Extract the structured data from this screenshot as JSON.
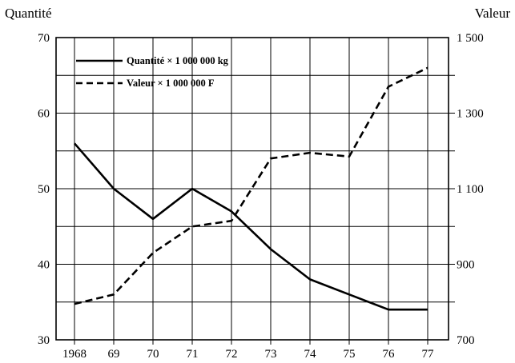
{
  "chart_data": {
    "type": "line",
    "title": "",
    "x": [
      "1968",
      "69",
      "70",
      "71",
      "72",
      "73",
      "74",
      "75",
      "76",
      "77"
    ],
    "left_axis": {
      "label": "Quantité",
      "min": 30,
      "max": 70,
      "ticks": [
        "30",
        "40",
        "50",
        "60",
        "70"
      ]
    },
    "right_axis": {
      "label": "Valeur",
      "min": 700,
      "max": 1500,
      "ticks": [
        "700",
        "900",
        "1 100",
        "1 300",
        "1 500"
      ]
    },
    "grid": true,
    "legend_position": "top-left",
    "series": [
      {
        "name": "Quantité × 1 000 000 kg",
        "axis": "left",
        "style": "solid",
        "color": "#000000",
        "values": [
          56,
          50,
          46,
          50,
          47,
          42,
          38,
          36,
          34,
          34
        ]
      },
      {
        "name": "Valeur × 1 000 000 F",
        "axis": "right",
        "style": "dashed",
        "color": "#000000",
        "values": [
          795,
          820,
          930,
          1000,
          1015,
          1180,
          1195,
          1185,
          1370,
          1420
        ]
      }
    ]
  }
}
